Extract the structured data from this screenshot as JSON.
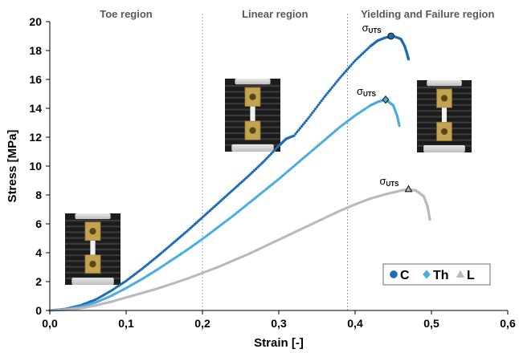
{
  "chart_data": {
    "type": "scatter",
    "xlabel": "Strain [-]",
    "ylabel": "Stress  [MPa]",
    "xlim": [
      0,
      0.6
    ],
    "ylim": [
      0,
      20
    ],
    "x_ticks": [
      "0,0",
      "0,1",
      "0,2",
      "0,3",
      "0,4",
      "0,5",
      "0,6"
    ],
    "y_ticks": [
      "0",
      "2",
      "4",
      "6",
      "8",
      "10",
      "12",
      "14",
      "16",
      "18",
      "20"
    ],
    "grid": false,
    "legend_position": "bottom-right",
    "regions": [
      {
        "label": "Toe region",
        "x_from": 0.0,
        "x_to": 0.2
      },
      {
        "label": "Linear region",
        "x_from": 0.2,
        "x_to": 0.39
      },
      {
        "label": "Yielding and Failure region",
        "x_from": 0.39,
        "x_to": 0.6
      }
    ],
    "uts_symbol": "σ",
    "uts_subscript": "UTS",
    "series": [
      {
        "name": "C",
        "color": "#1f6cb5",
        "marker": "circle",
        "x": [
          0,
          0.02,
          0.04,
          0.06,
          0.08,
          0.1,
          0.12,
          0.14,
          0.16,
          0.18,
          0.2,
          0.22,
          0.24,
          0.26,
          0.28,
          0.3,
          0.31,
          0.32,
          0.34,
          0.36,
          0.38,
          0.4,
          0.42,
          0.43,
          0.44,
          0.45,
          0.46,
          0.465,
          0.468,
          0.47
        ],
        "y": [
          0,
          0.1,
          0.35,
          0.75,
          1.35,
          2.05,
          2.85,
          3.7,
          4.6,
          5.5,
          6.45,
          7.4,
          8.35,
          9.3,
          10.3,
          11.4,
          11.9,
          12.1,
          13.4,
          14.8,
          16.1,
          17.3,
          18.3,
          18.7,
          18.9,
          19.0,
          18.8,
          18.3,
          17.8,
          17.4
        ],
        "uts": {
          "x": 0.447,
          "y": 19.0
        }
      },
      {
        "name": "Th",
        "color": "#4aabe2",
        "marker": "diamond",
        "x": [
          0,
          0.02,
          0.04,
          0.06,
          0.08,
          0.1,
          0.12,
          0.14,
          0.16,
          0.18,
          0.2,
          0.22,
          0.24,
          0.26,
          0.28,
          0.3,
          0.32,
          0.34,
          0.36,
          0.38,
          0.4,
          0.42,
          0.43,
          0.44,
          0.45,
          0.455,
          0.458
        ],
        "y": [
          0,
          0.08,
          0.25,
          0.55,
          1.0,
          1.55,
          2.15,
          2.8,
          3.5,
          4.2,
          4.95,
          5.75,
          6.55,
          7.4,
          8.25,
          9.1,
          10.0,
          10.9,
          11.8,
          12.7,
          13.5,
          14.2,
          14.45,
          14.6,
          14.2,
          13.5,
          12.8
        ],
        "uts": {
          "x": 0.44,
          "y": 14.6
        }
      },
      {
        "name": "L",
        "color": "#b9b9b9",
        "marker": "triangle",
        "x": [
          0,
          0.02,
          0.04,
          0.06,
          0.08,
          0.1,
          0.12,
          0.14,
          0.16,
          0.18,
          0.2,
          0.22,
          0.24,
          0.26,
          0.28,
          0.3,
          0.32,
          0.34,
          0.36,
          0.38,
          0.4,
          0.42,
          0.44,
          0.46,
          0.47,
          0.48,
          0.49,
          0.495,
          0.498
        ],
        "y": [
          0,
          0.05,
          0.15,
          0.35,
          0.6,
          0.9,
          1.2,
          1.5,
          1.85,
          2.2,
          2.6,
          3.0,
          3.45,
          3.9,
          4.4,
          4.9,
          5.4,
          5.9,
          6.4,
          6.9,
          7.35,
          7.75,
          8.05,
          8.3,
          8.4,
          8.3,
          7.9,
          7.2,
          6.3
        ],
        "uts": {
          "x": 0.47,
          "y": 8.4
        }
      }
    ],
    "specimen_photos": [
      {
        "label": "specimen at toe region",
        "near_x": 0.055,
        "near_y": 4.0
      },
      {
        "label": "specimen at linear region",
        "near_x": 0.245,
        "near_y": 14.0
      },
      {
        "label": "specimen at failure",
        "near_x": 0.51,
        "near_y": 14.0
      }
    ]
  }
}
